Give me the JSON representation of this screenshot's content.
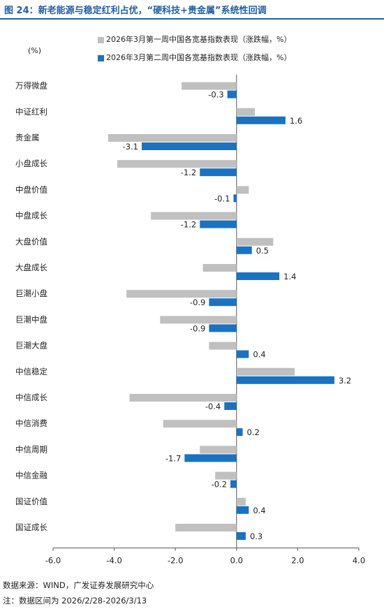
{
  "figure_title": "图 24：新老能源与稳定红利占优，“硬科技+贵金属”系统性回调",
  "source": "数据来源：WIND，广发证券发展研究中心",
  "note": "注：数据区间为 2026/2/28-2026/3/13",
  "colors": {
    "week1": "#c0c0c0",
    "week2": "#1a72c3",
    "title": "#1f5fa8"
  },
  "chart_data": {
    "type": "bar",
    "orientation": "horizontal",
    "title": "",
    "ylabel": "(%)",
    "xlim": [
      -6.0,
      4.0
    ],
    "xticks": [
      "-6.0",
      "-4.0",
      "-2.0",
      "0.0",
      "2.0",
      "4.0"
    ],
    "xtick_values": [
      -6,
      -4,
      -2,
      0,
      2,
      4
    ],
    "grid": false,
    "legend": "top",
    "categories": [
      "万得微盘",
      "中证红利",
      "贵金属",
      "小盘成长",
      "中盘价值",
      "中盘成长",
      "大盘价值",
      "大盘成长",
      "巨潮小盘",
      "巨潮中盘",
      "巨潮大盘",
      "中信稳定",
      "中信成长",
      "中信消费",
      "中信周期",
      "中信金融",
      "国证价值",
      "国证成长"
    ],
    "series": [
      {
        "name": "2026年3月第一周中国各宽基指数表现（涨跌幅，%）",
        "values": [
          -1.8,
          0.6,
          -4.2,
          -3.9,
          0.4,
          -2.8,
          1.2,
          -1.1,
          -3.6,
          -2.5,
          -0.9,
          1.9,
          -3.5,
          -2.4,
          -1.2,
          -0.7,
          0.3,
          -2.0
        ],
        "labels": [
          "",
          "",
          "",
          "",
          "",
          "",
          "",
          "",
          "",
          "",
          "",
          "",
          "",
          "",
          "",
          "",
          "",
          ""
        ]
      },
      {
        "name": "2026年3月第二周中国各宽基指数表现（涨跌幅，%）",
        "values": [
          -0.3,
          1.6,
          -3.1,
          -1.2,
          -0.1,
          -1.2,
          0.5,
          1.4,
          -0.9,
          -0.9,
          0.4,
          3.2,
          -0.4,
          0.2,
          -1.7,
          -0.2,
          0.4,
          0.3
        ],
        "labels": [
          "-0.3",
          "1.6",
          "-3.1",
          "-1.2",
          "-0.1",
          "-1.2",
          "0.5",
          "1.4",
          "-0.9",
          "-0.9",
          "0.4",
          "3.2",
          "-0.4",
          "0.2",
          "-1.7",
          "-0.2",
          "0.4",
          "0.3"
        ]
      }
    ]
  }
}
